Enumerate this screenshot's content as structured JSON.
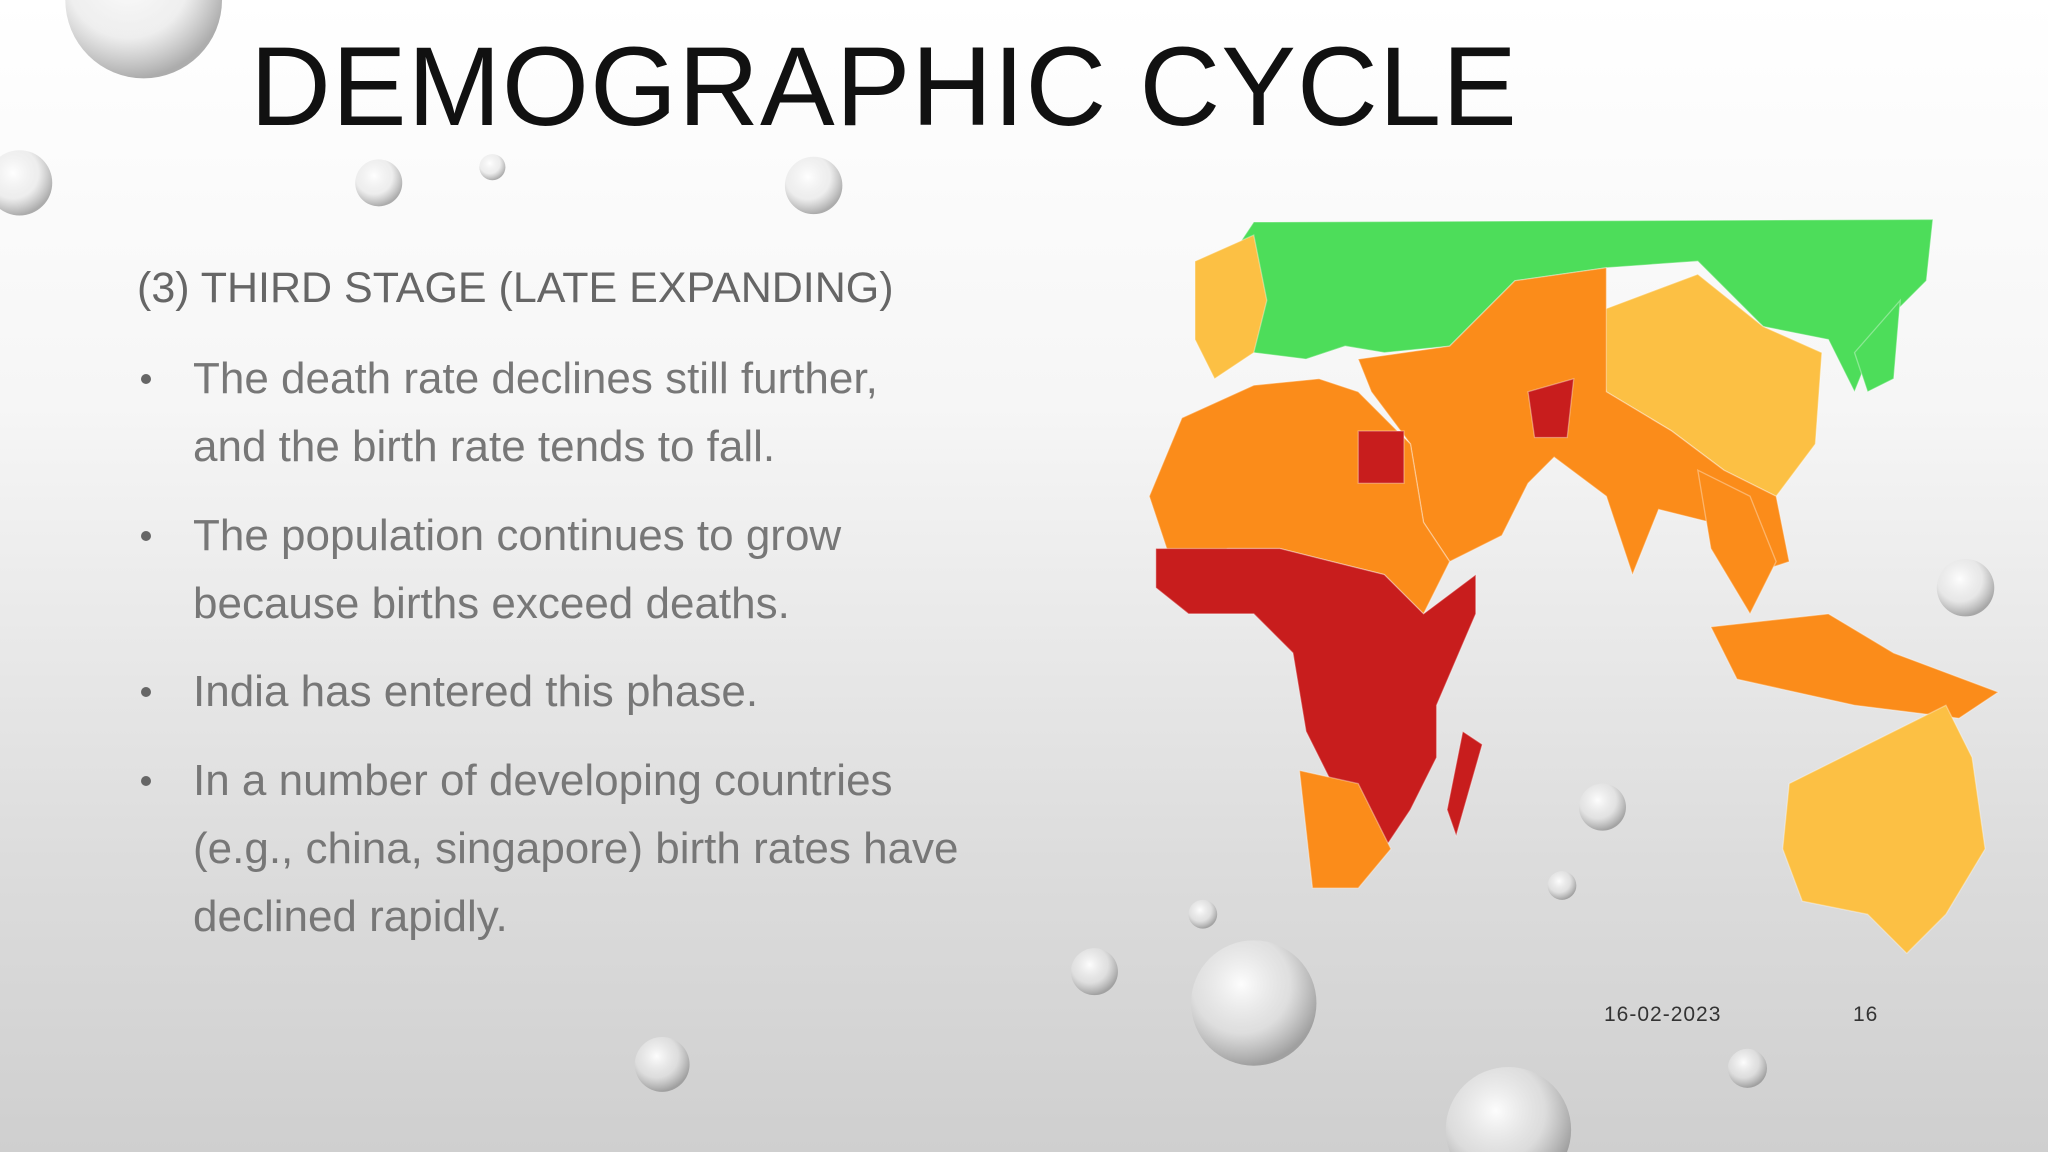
{
  "slide": {
    "title": "DEMOGRAPHIC CYCLE",
    "subtitle": "(3) THIRD STAGE (LATE EXPANDING)",
    "bullets": [
      [
        "The death rate declines still further,",
        "and the birth rate tends to fall."
      ],
      [
        "The population continues to grow",
        "because births exceed deaths."
      ],
      [
        "India has entered this phase."
      ],
      [
        "In a number of developing countries",
        "(e.g., china, singapore) birth rates have",
        "declined rapidly."
      ]
    ],
    "date": "16-02-2023",
    "page_number": "16"
  }
}
